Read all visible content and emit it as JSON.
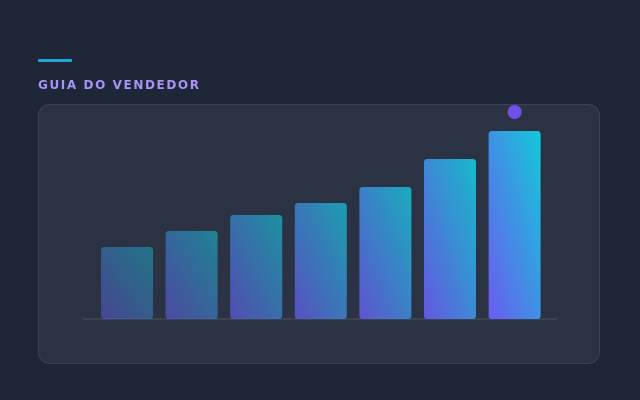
{
  "header": {
    "kicker": "GUIA DO VENDEDOR"
  },
  "colors": {
    "accent_line": "#22a7d6",
    "kicker": "#a694f6",
    "background": "#1f2638",
    "card": "#2a3243",
    "bar_teal": "#14c8d8",
    "bar_violet": "#6a5cf0",
    "highlight_dot": "#6f52e4"
  },
  "chart_data": {
    "type": "bar",
    "values": [
      18,
      22,
      26,
      29,
      33,
      40,
      47
    ],
    "ylim": [
      0,
      50
    ],
    "grid": false,
    "legend": "none",
    "highlight": "last-bar-marker-dot"
  }
}
